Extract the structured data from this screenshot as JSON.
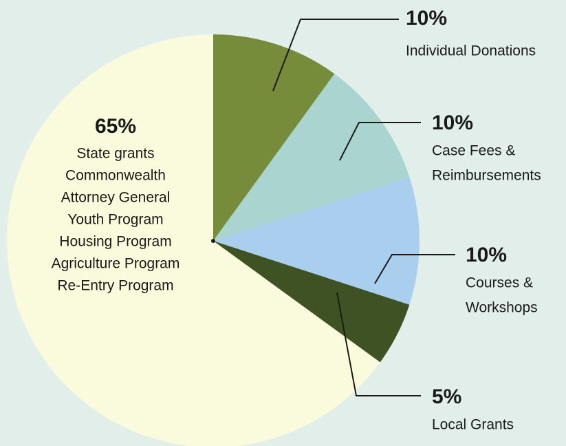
{
  "chart_data": {
    "type": "pie",
    "categories": [
      [
        "Individual Donations"
      ],
      [
        "Case Fees &",
        "Reimbursements"
      ],
      [
        "Courses &",
        "Workshops"
      ],
      [
        "Local Grants"
      ],
      [
        "State grants",
        "Commonwealth",
        "Attorney General",
        "Youth Program",
        "Housing Program",
        "Agriculture Program",
        "Re-Entry Program"
      ]
    ],
    "values": [
      10,
      10,
      10,
      5,
      65
    ],
    "value_labels": [
      "10%",
      "10%",
      "10%",
      "5%",
      "65%"
    ],
    "colors": [
      "#778c3a",
      "#a9d4d0",
      "#aacfee",
      "#3f5223",
      "#fafadc"
    ]
  }
}
